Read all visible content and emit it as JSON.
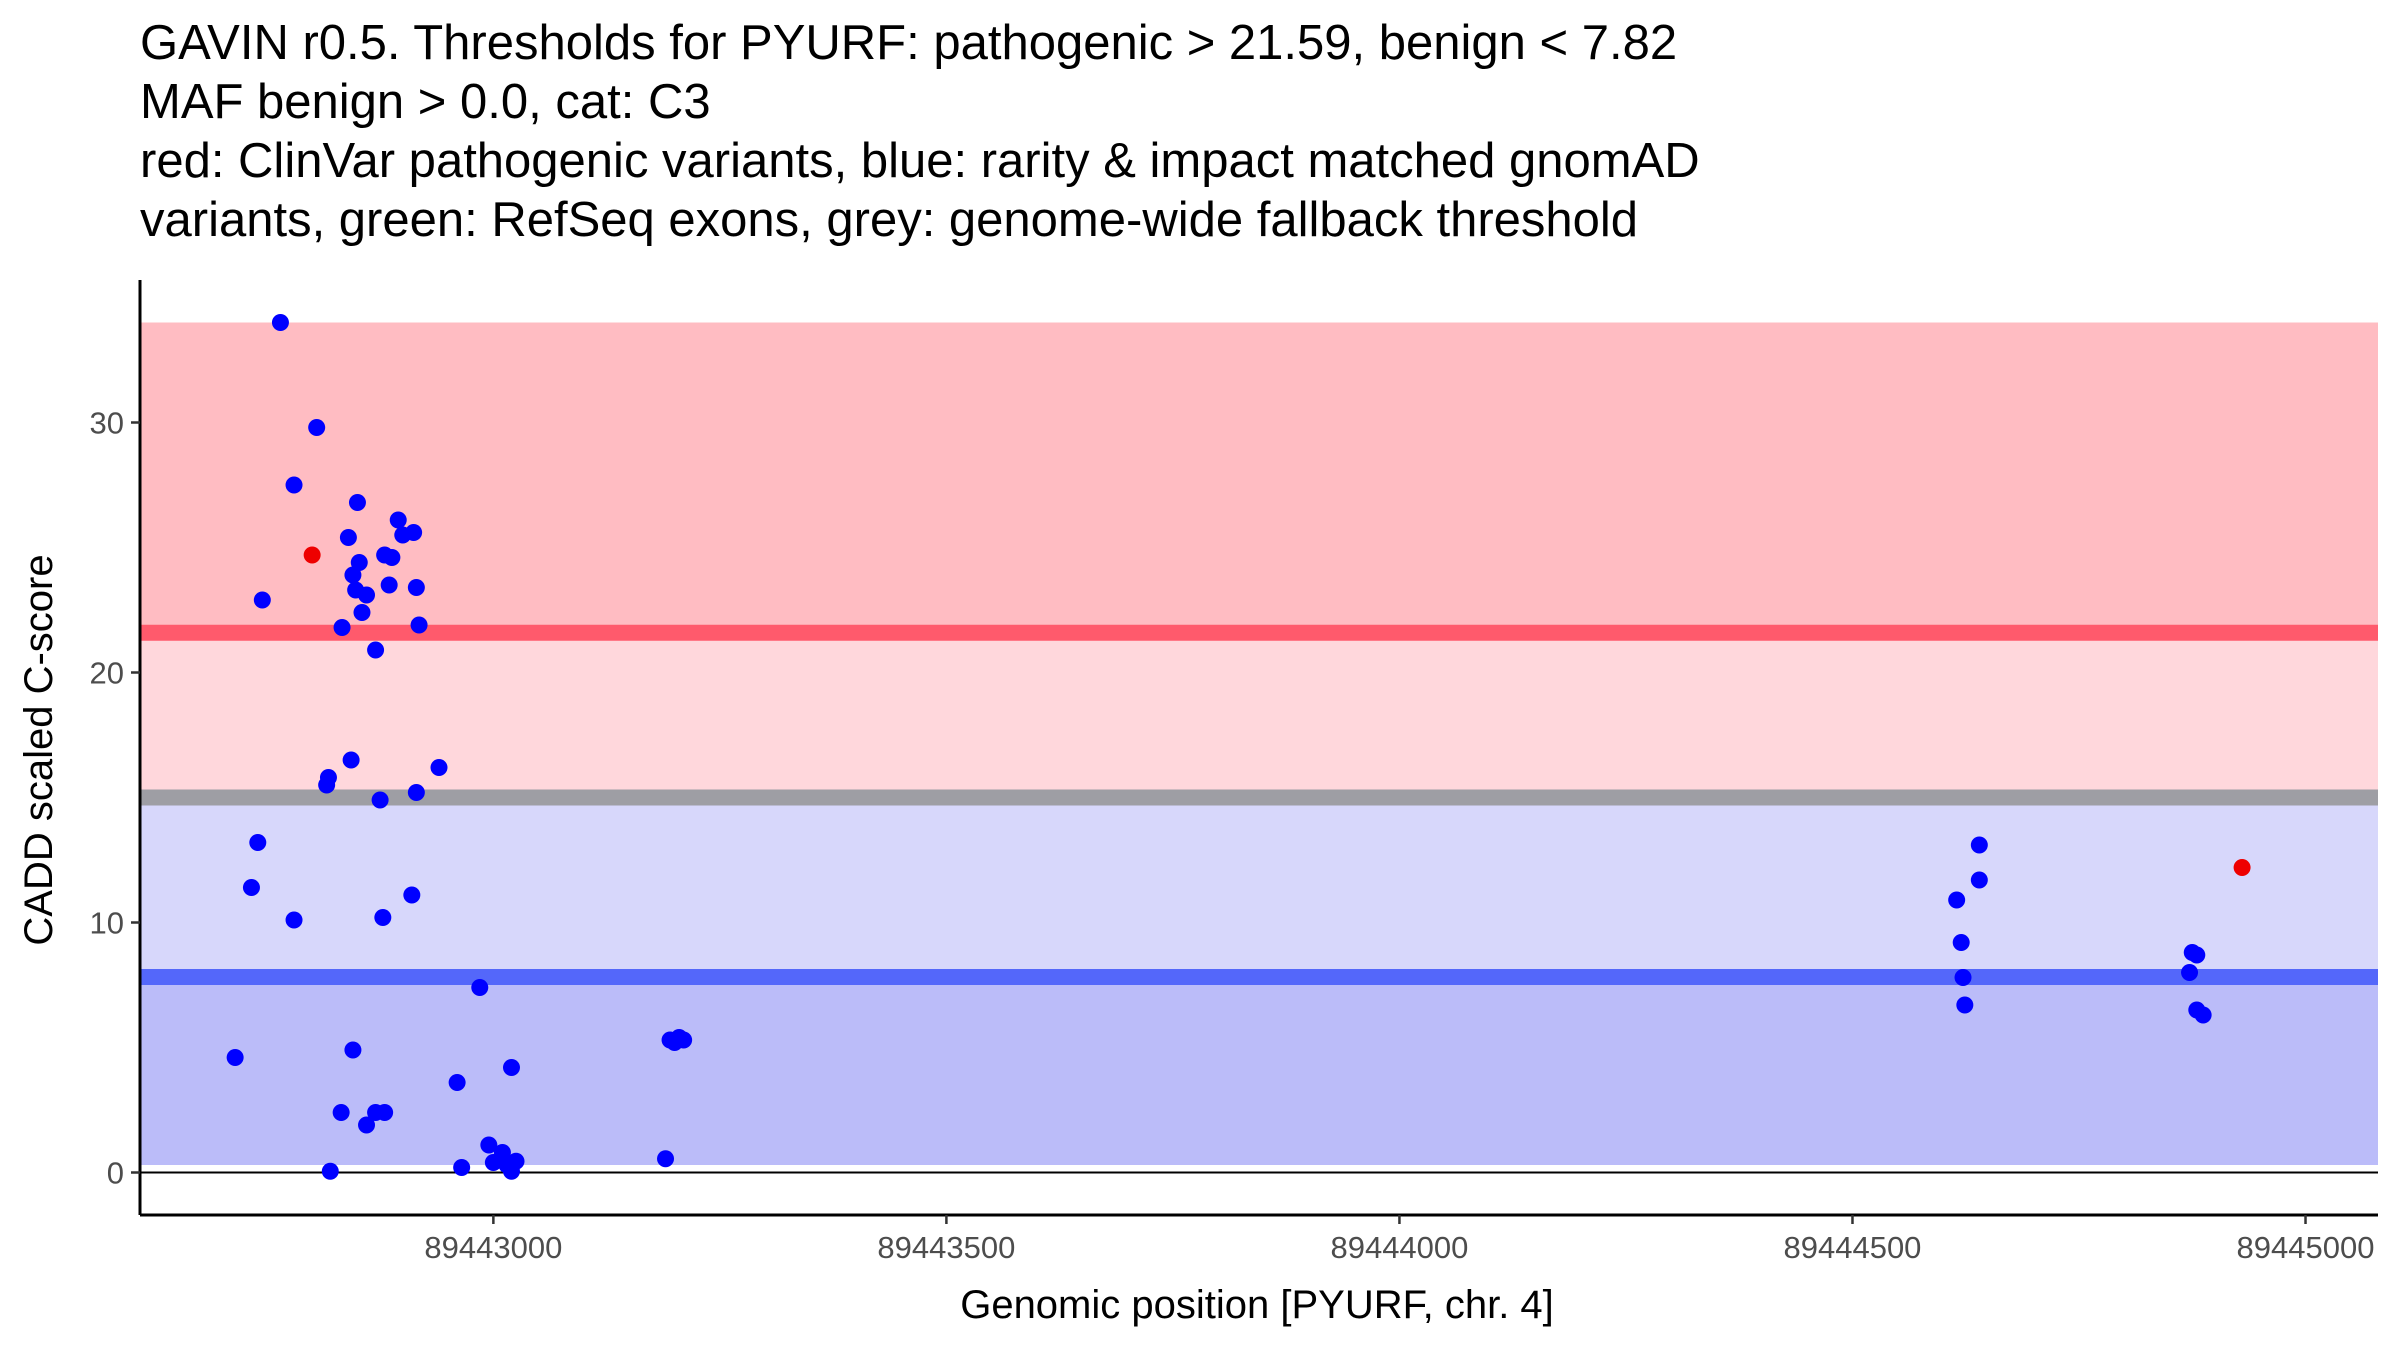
{
  "title_lines": [
    "GAVIN r0.5. Thresholds for PYURF: pathogenic > 21.59, benign < 7.82",
    "MAF benign > 0.0, cat: C3",
    "red: ClinVar pathogenic variants, blue: rarity & impact matched gnomAD",
    "variants, green: RefSeq exons, grey: genome-wide fallback threshold"
  ],
  "chart_data": {
    "type": "scatter",
    "xlabel": "Genomic position [PYURF, chr. 4]",
    "ylabel": "CADD scaled C-score",
    "xlim": [
      89442610,
      89445080
    ],
    "ylim": [
      -1.7,
      35.7
    ],
    "x_ticks": [
      89443000,
      89443500,
      89444000,
      89444500,
      89445000
    ],
    "x_tick_labels": [
      "89443000",
      "89443500",
      "89444000",
      "89444500",
      "89445000"
    ],
    "y_ticks": [
      0,
      10,
      20,
      30
    ],
    "y_tick_labels": [
      "0",
      "10",
      "20",
      "30"
    ],
    "colors": {
      "pathogenic_zone": "#ffbcc2",
      "grey_to_path_zone": "#ffd7dc",
      "grey_to_benign_zone": "#d7d7fb",
      "benign_zone": "#bbbcf9",
      "pathogenic_line": "#ff5a6c",
      "fallback_line": "#9e9ea4",
      "benign_line": "#5467fa",
      "gnomad_point": "#0000ff",
      "clinvar_point": "#ee0000"
    },
    "bands": {
      "x_range": [
        89442610,
        89445080
      ],
      "top": 34,
      "pathogenic_threshold": 21.59,
      "fallback_threshold": 15.0,
      "benign_threshold": 7.82,
      "bottom": 0.3
    },
    "series": [
      {
        "name": "ClinVar pathogenic variants",
        "color": "#ee0000",
        "points": [
          [
            89442800,
            24.7
          ],
          [
            89444930,
            12.2
          ]
        ]
      },
      {
        "name": "rarity & impact matched gnomAD variants",
        "color": "#0000ff",
        "points": [
          [
            89442765,
            34.0
          ],
          [
            89442805,
            29.8
          ],
          [
            89442780,
            27.5
          ],
          [
            89442850,
            26.8
          ],
          [
            89442895,
            26.1
          ],
          [
            89442900,
            25.5
          ],
          [
            89442912,
            25.6
          ],
          [
            89442840,
            25.4
          ],
          [
            89442880,
            24.7
          ],
          [
            89442888,
            24.6
          ],
          [
            89442845,
            23.9
          ],
          [
            89442852,
            24.4
          ],
          [
            89442885,
            23.5
          ],
          [
            89442915,
            23.4
          ],
          [
            89442860,
            23.1
          ],
          [
            89442848,
            23.3
          ],
          [
            89442745,
            22.9
          ],
          [
            89442855,
            22.4
          ],
          [
            89442833,
            21.8
          ],
          [
            89442918,
            21.9
          ],
          [
            89442870,
            20.9
          ],
          [
            89442843,
            16.5
          ],
          [
            89442940,
            16.2
          ],
          [
            89442818,
            15.8
          ],
          [
            89442816,
            15.5
          ],
          [
            89442875,
            14.9
          ],
          [
            89442915,
            15.2
          ],
          [
            89442740,
            13.2
          ],
          [
            89442733,
            11.4
          ],
          [
            89442910,
            11.1
          ],
          [
            89442780,
            10.1
          ],
          [
            89442878,
            10.2
          ],
          [
            89442985,
            7.4
          ],
          [
            89442715,
            4.6
          ],
          [
            89442845,
            4.9
          ],
          [
            89442960,
            3.6
          ],
          [
            89443020,
            4.2
          ],
          [
            89442832,
            2.4
          ],
          [
            89442870,
            2.4
          ],
          [
            89442880,
            2.4
          ],
          [
            89442860,
            1.9
          ],
          [
            89442820,
            0.05
          ],
          [
            89442965,
            0.2
          ],
          [
            89442995,
            1.1
          ],
          [
            89443000,
            0.4
          ],
          [
            89443010,
            0.8
          ],
          [
            89443015,
            0.3
          ],
          [
            89443020,
            0.05
          ],
          [
            89443025,
            0.45
          ],
          [
            89443190,
            0.55
          ],
          [
            89443195,
            5.3
          ],
          [
            89443200,
            5.2
          ],
          [
            89443205,
            5.4
          ],
          [
            89443210,
            5.3
          ],
          [
            89444615,
            10.9
          ],
          [
            89444620,
            9.2
          ],
          [
            89444622,
            7.8
          ],
          [
            89444624,
            6.7
          ],
          [
            89444640,
            13.1
          ],
          [
            89444640,
            11.7
          ],
          [
            89444875,
            8.8
          ],
          [
            89444880,
            8.7
          ],
          [
            89444872,
            8.0
          ],
          [
            89444880,
            6.5
          ],
          [
            89444887,
            6.3
          ]
        ]
      }
    ]
  }
}
